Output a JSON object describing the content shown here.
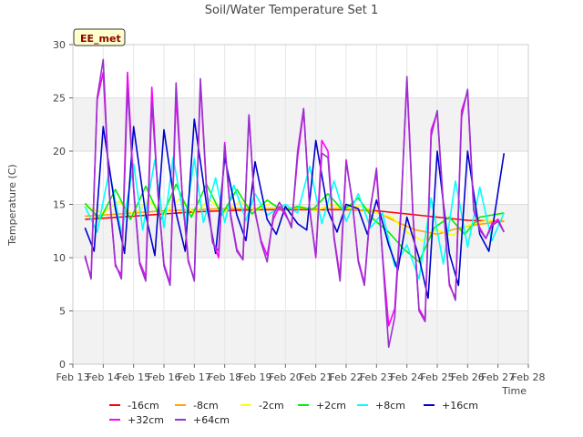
{
  "chart_data": {
    "type": "line",
    "title": "Soil/Water Temperature Set 1",
    "xlabel": "Time",
    "ylabel": "Temperature (C)",
    "site_label": "EE_met",
    "xlim": [
      "Feb 13",
      "Feb 28"
    ],
    "ylim": [
      0,
      30
    ],
    "x_ticks": [
      "Feb 13",
      "Feb 14",
      "Feb 15",
      "Feb 16",
      "Feb 17",
      "Feb 18",
      "Feb 19",
      "Feb 20",
      "Feb 21",
      "Feb 22",
      "Feb 23",
      "Feb 24",
      "Feb 25",
      "Feb 26",
      "Feb 27",
      "Feb 28"
    ],
    "y_ticks": [
      0,
      5,
      10,
      15,
      20,
      25,
      30
    ],
    "grid": true,
    "legend_placement": "bottom",
    "series": [
      {
        "name": "-16cm",
        "color": "#ff0000",
        "x_days": [
          0.4,
          1,
          2,
          3,
          4,
          5,
          6,
          7,
          8,
          9,
          10,
          11,
          12,
          13,
          14.2
        ],
        "values": [
          13.6,
          13.7,
          13.9,
          14.1,
          14.3,
          14.4,
          14.5,
          14.5,
          14.5,
          14.5,
          14.4,
          14.1,
          13.8,
          13.5,
          13.4
        ]
      },
      {
        "name": "-8cm",
        "color": "#ffa500",
        "x_days": [
          0.4,
          1,
          2,
          3,
          4,
          5,
          6,
          7,
          8,
          9,
          10,
          10.7,
          11.3,
          12,
          12.6,
          13.3,
          14.2
        ],
        "values": [
          13.9,
          14.0,
          14.2,
          14.4,
          14.5,
          14.6,
          14.6,
          14.6,
          14.6,
          14.6,
          14.3,
          13.3,
          12.6,
          12.2,
          12.7,
          13.1,
          13.4
        ]
      },
      {
        "name": "-2cm",
        "color": "#ffff00",
        "x_days": [
          0.4,
          1,
          1.5,
          2,
          2.5,
          3,
          3.5,
          4,
          4.5,
          5,
          5.5,
          6,
          6.5,
          7,
          7.5,
          8,
          8.5,
          9,
          9.5,
          10,
          10.5,
          11,
          11.5,
          12,
          12.5,
          13,
          13.5,
          14.2
        ],
        "values": [
          14.8,
          14.2,
          15.3,
          14.0,
          15.4,
          14.1,
          15.5,
          14.2,
          15.4,
          14.3,
          15.3,
          14.4,
          15.1,
          14.5,
          14.8,
          14.4,
          15.0,
          14.6,
          14.9,
          14.2,
          13.8,
          12.4,
          11.6,
          12.6,
          12.1,
          13.0,
          13.4,
          13.6
        ]
      },
      {
        "name": "+2cm",
        "color": "#00ee00",
        "x_days": [
          0.4,
          0.9,
          1.4,
          1.9,
          2.4,
          2.9,
          3.4,
          3.9,
          4.4,
          4.9,
          5.4,
          5.9,
          6.4,
          6.9,
          7.4,
          7.9,
          8.4,
          8.9,
          9.4,
          9.9,
          10.4,
          10.9,
          11.4,
          11.9,
          12.4,
          12.9,
          13.4,
          14.2
        ],
        "values": [
          15.1,
          13.6,
          16.4,
          13.6,
          16.7,
          13.6,
          16.9,
          13.8,
          16.9,
          14.0,
          16.4,
          14.1,
          15.4,
          14.4,
          14.8,
          14.5,
          16.0,
          14.4,
          15.6,
          13.6,
          12.4,
          10.8,
          9.6,
          12.8,
          13.8,
          12.2,
          13.8,
          14.2
        ]
      },
      {
        "name": "+8cm",
        "color": "#00ffff",
        "x_days": [
          0.4,
          0.8,
          1.2,
          1.6,
          2.0,
          2.3,
          2.7,
          3.0,
          3.3,
          3.7,
          4.0,
          4.3,
          4.7,
          5.0,
          5.3,
          5.7,
          6.0,
          6.4,
          7.0,
          7.4,
          7.8,
          8.2,
          8.6,
          9.0,
          9.4,
          9.8,
          10.2,
          10.6,
          11.0,
          11.4,
          11.8,
          12.2,
          12.6,
          13.0,
          13.4,
          13.8,
          14.2
        ],
        "values": [
          14.8,
          12.4,
          18.2,
          12.3,
          18.8,
          12.6,
          19.2,
          12.8,
          19.4,
          13.2,
          19.3,
          13.3,
          17.5,
          13.3,
          16.8,
          13.5,
          16.0,
          14.0,
          15.0,
          14.2,
          18.6,
          13.2,
          17.2,
          13.4,
          16.0,
          12.8,
          14.2,
          9.2,
          11.2,
          8.0,
          15.6,
          9.4,
          17.2,
          11.0,
          16.6,
          11.6,
          14.2
        ]
      },
      {
        "name": "+16cm",
        "color": "#0000cd",
        "x_days": [
          0.4,
          0.7,
          1.0,
          1.4,
          1.7,
          2.0,
          2.4,
          2.7,
          3.0,
          3.4,
          3.7,
          4.0,
          4.4,
          4.7,
          5.0,
          5.4,
          5.7,
          6.0,
          6.4,
          6.7,
          7.0,
          7.4,
          7.7,
          8.0,
          8.4,
          8.7,
          9.0,
          9.4,
          9.7,
          10.0,
          10.4,
          10.7,
          11.0,
          11.4,
          11.7,
          12.0,
          12.4,
          12.7,
          13.0,
          13.4,
          13.7,
          14.2
        ],
        "values": [
          12.8,
          10.6,
          22.3,
          14.6,
          10.4,
          22.3,
          14.0,
          10.2,
          22.0,
          14.2,
          10.6,
          23.0,
          15.0,
          10.4,
          19.4,
          14.0,
          11.6,
          19.0,
          13.6,
          12.2,
          14.8,
          13.2,
          12.6,
          21.0,
          14.4,
          12.4,
          15.0,
          14.6,
          12.2,
          15.4,
          11.2,
          8.8,
          13.8,
          10.0,
          6.2,
          20.0,
          10.4,
          7.4,
          20.0,
          12.2,
          10.6,
          19.8
        ]
      },
      {
        "name": "+32cm",
        "color": "#ff00ff",
        "x_days": [
          0.4,
          0.6,
          0.8,
          1.0,
          1.2,
          1.4,
          1.6,
          1.8,
          2.0,
          2.2,
          2.4,
          2.6,
          2.8,
          3.0,
          3.2,
          3.4,
          3.6,
          3.8,
          4.0,
          4.2,
          4.4,
          4.6,
          4.8,
          5.0,
          5.2,
          5.4,
          5.6,
          5.8,
          6.0,
          6.2,
          6.4,
          6.6,
          6.8,
          7.0,
          7.2,
          7.4,
          7.6,
          7.8,
          8.0,
          8.2,
          8.4,
          8.6,
          8.8,
          9.0,
          9.2,
          9.4,
          9.6,
          9.8,
          10.0,
          10.2,
          10.4,
          10.6,
          10.8,
          11.0,
          11.2,
          11.4,
          11.6,
          11.8,
          12.0,
          12.2,
          12.4,
          12.6,
          12.8,
          13.0,
          13.2,
          13.4,
          13.6,
          13.8,
          14.0,
          14.2
        ],
        "values": [
          10.0,
          8.2,
          24.8,
          27.4,
          16.2,
          9.2,
          8.4,
          27.4,
          16.6,
          9.6,
          8.2,
          26.0,
          16.0,
          9.4,
          7.6,
          25.2,
          16.0,
          9.6,
          8.0,
          26.4,
          16.4,
          11.6,
          10.0,
          20.8,
          14.0,
          10.8,
          9.8,
          23.4,
          14.2,
          11.6,
          10.2,
          13.6,
          14.8,
          14.0,
          13.0,
          19.4,
          23.8,
          14.6,
          10.0,
          21.0,
          20.0,
          12.0,
          8.2,
          19.2,
          15.2,
          9.8,
          7.6,
          14.8,
          18.0,
          10.2,
          3.6,
          5.2,
          14.4,
          26.6,
          14.0,
          5.2,
          4.2,
          22.0,
          23.6,
          15.0,
          7.4,
          6.2,
          23.8,
          25.6,
          14.4,
          12.8,
          11.8,
          13.2,
          13.6,
          12.4
        ]
      },
      {
        "name": "+64cm",
        "color": "#9932cc",
        "x_days": [
          0.4,
          0.6,
          0.8,
          1.0,
          1.2,
          1.4,
          1.6,
          1.8,
          2.0,
          2.2,
          2.4,
          2.6,
          2.8,
          3.0,
          3.2,
          3.4,
          3.6,
          3.8,
          4.0,
          4.2,
          4.4,
          4.6,
          4.8,
          5.0,
          5.2,
          5.4,
          5.6,
          5.8,
          6.0,
          6.2,
          6.4,
          6.6,
          6.8,
          7.0,
          7.2,
          7.4,
          7.6,
          7.8,
          8.0,
          8.2,
          8.4,
          8.6,
          8.8,
          9.0,
          9.2,
          9.4,
          9.6,
          9.8,
          10.0,
          10.2,
          10.4,
          10.6,
          10.8,
          11.0,
          11.2,
          11.4,
          11.6,
          11.8,
          12.0,
          12.2,
          12.4,
          12.6,
          12.8,
          13.0,
          13.2,
          13.4,
          13.6,
          13.8,
          14.0,
          14.2
        ],
        "values": [
          10.2,
          8.0,
          25.0,
          28.6,
          16.0,
          9.4,
          8.0,
          26.0,
          16.4,
          9.4,
          7.8,
          24.6,
          16.2,
          9.2,
          7.4,
          26.4,
          16.0,
          9.8,
          7.8,
          26.8,
          16.6,
          11.4,
          10.6,
          20.6,
          13.8,
          10.6,
          9.8,
          23.4,
          14.4,
          11.4,
          9.6,
          14.0,
          15.2,
          14.2,
          12.8,
          20.0,
          24.0,
          14.4,
          10.2,
          19.8,
          19.4,
          11.8,
          7.8,
          19.0,
          15.4,
          9.6,
          7.4,
          14.6,
          18.4,
          10.0,
          1.6,
          4.4,
          14.0,
          27.0,
          14.2,
          5.0,
          4.0,
          21.4,
          23.8,
          14.8,
          7.6,
          6.0,
          23.2,
          25.8,
          14.6,
          12.6,
          11.8,
          13.0,
          13.4,
          12.4
        ]
      }
    ]
  }
}
